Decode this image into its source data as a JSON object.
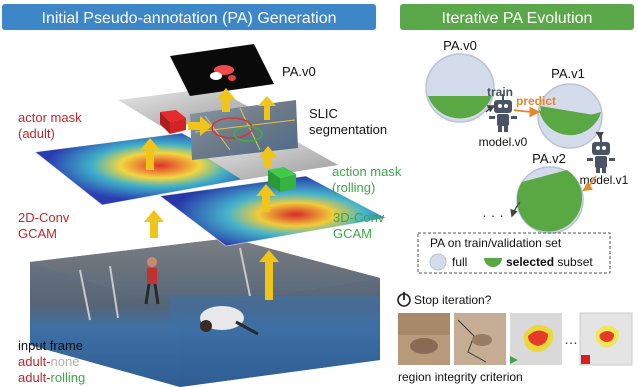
{
  "left_panel": {
    "title": "Initial Pseudo-annotation (PA) Generation",
    "labels": {
      "pa_v0": "PA.v0",
      "actor_mask_line1": "actor mask",
      "actor_mask_line2": "(adult)",
      "slic_line1": "SLIC",
      "slic_line2": "segmentation",
      "action_mask_line1": "action mask",
      "action_mask_line2": "(rolling)",
      "conv2d_line1": "2D-Conv",
      "conv2d_line2": "GCAM",
      "conv3d_line1": "3D-Conv",
      "conv3d_line2": "GCAM",
      "input_frame": "input frame",
      "adult_none_prefix": "adult-",
      "adult_none_suffix": "none",
      "adult_rolling_prefix": "adult-",
      "adult_rolling_suffix": "rolling"
    }
  },
  "right_panel": {
    "title": "Iterative PA Evolution",
    "labels": {
      "pa_v0": "PA.v0",
      "pa_v1": "PA.v1",
      "pa_v2": "PA.v2",
      "train": "train",
      "predict": "predict",
      "model_v0": "model.v0",
      "model_v1": "model.v1",
      "ellipsis": "· · ·"
    },
    "legend": {
      "title": "PA on train/validation set",
      "full": "full",
      "selected_bold": "selected",
      "subset": "subset"
    },
    "stop": {
      "label": "Stop iteration?",
      "ellipsis": "…",
      "caption": "region integrity criterion"
    }
  },
  "colors": {
    "left_title_bg": "#3d86c8",
    "right_title_bg": "#5aa84a",
    "actor_red": "#c0272d",
    "action_green": "#3da64a",
    "predict_orange": "#e8862a",
    "circle_fill": "#d4dbea",
    "selected_green": "#5aa843",
    "arrow_yellow": "#f0c419"
  }
}
